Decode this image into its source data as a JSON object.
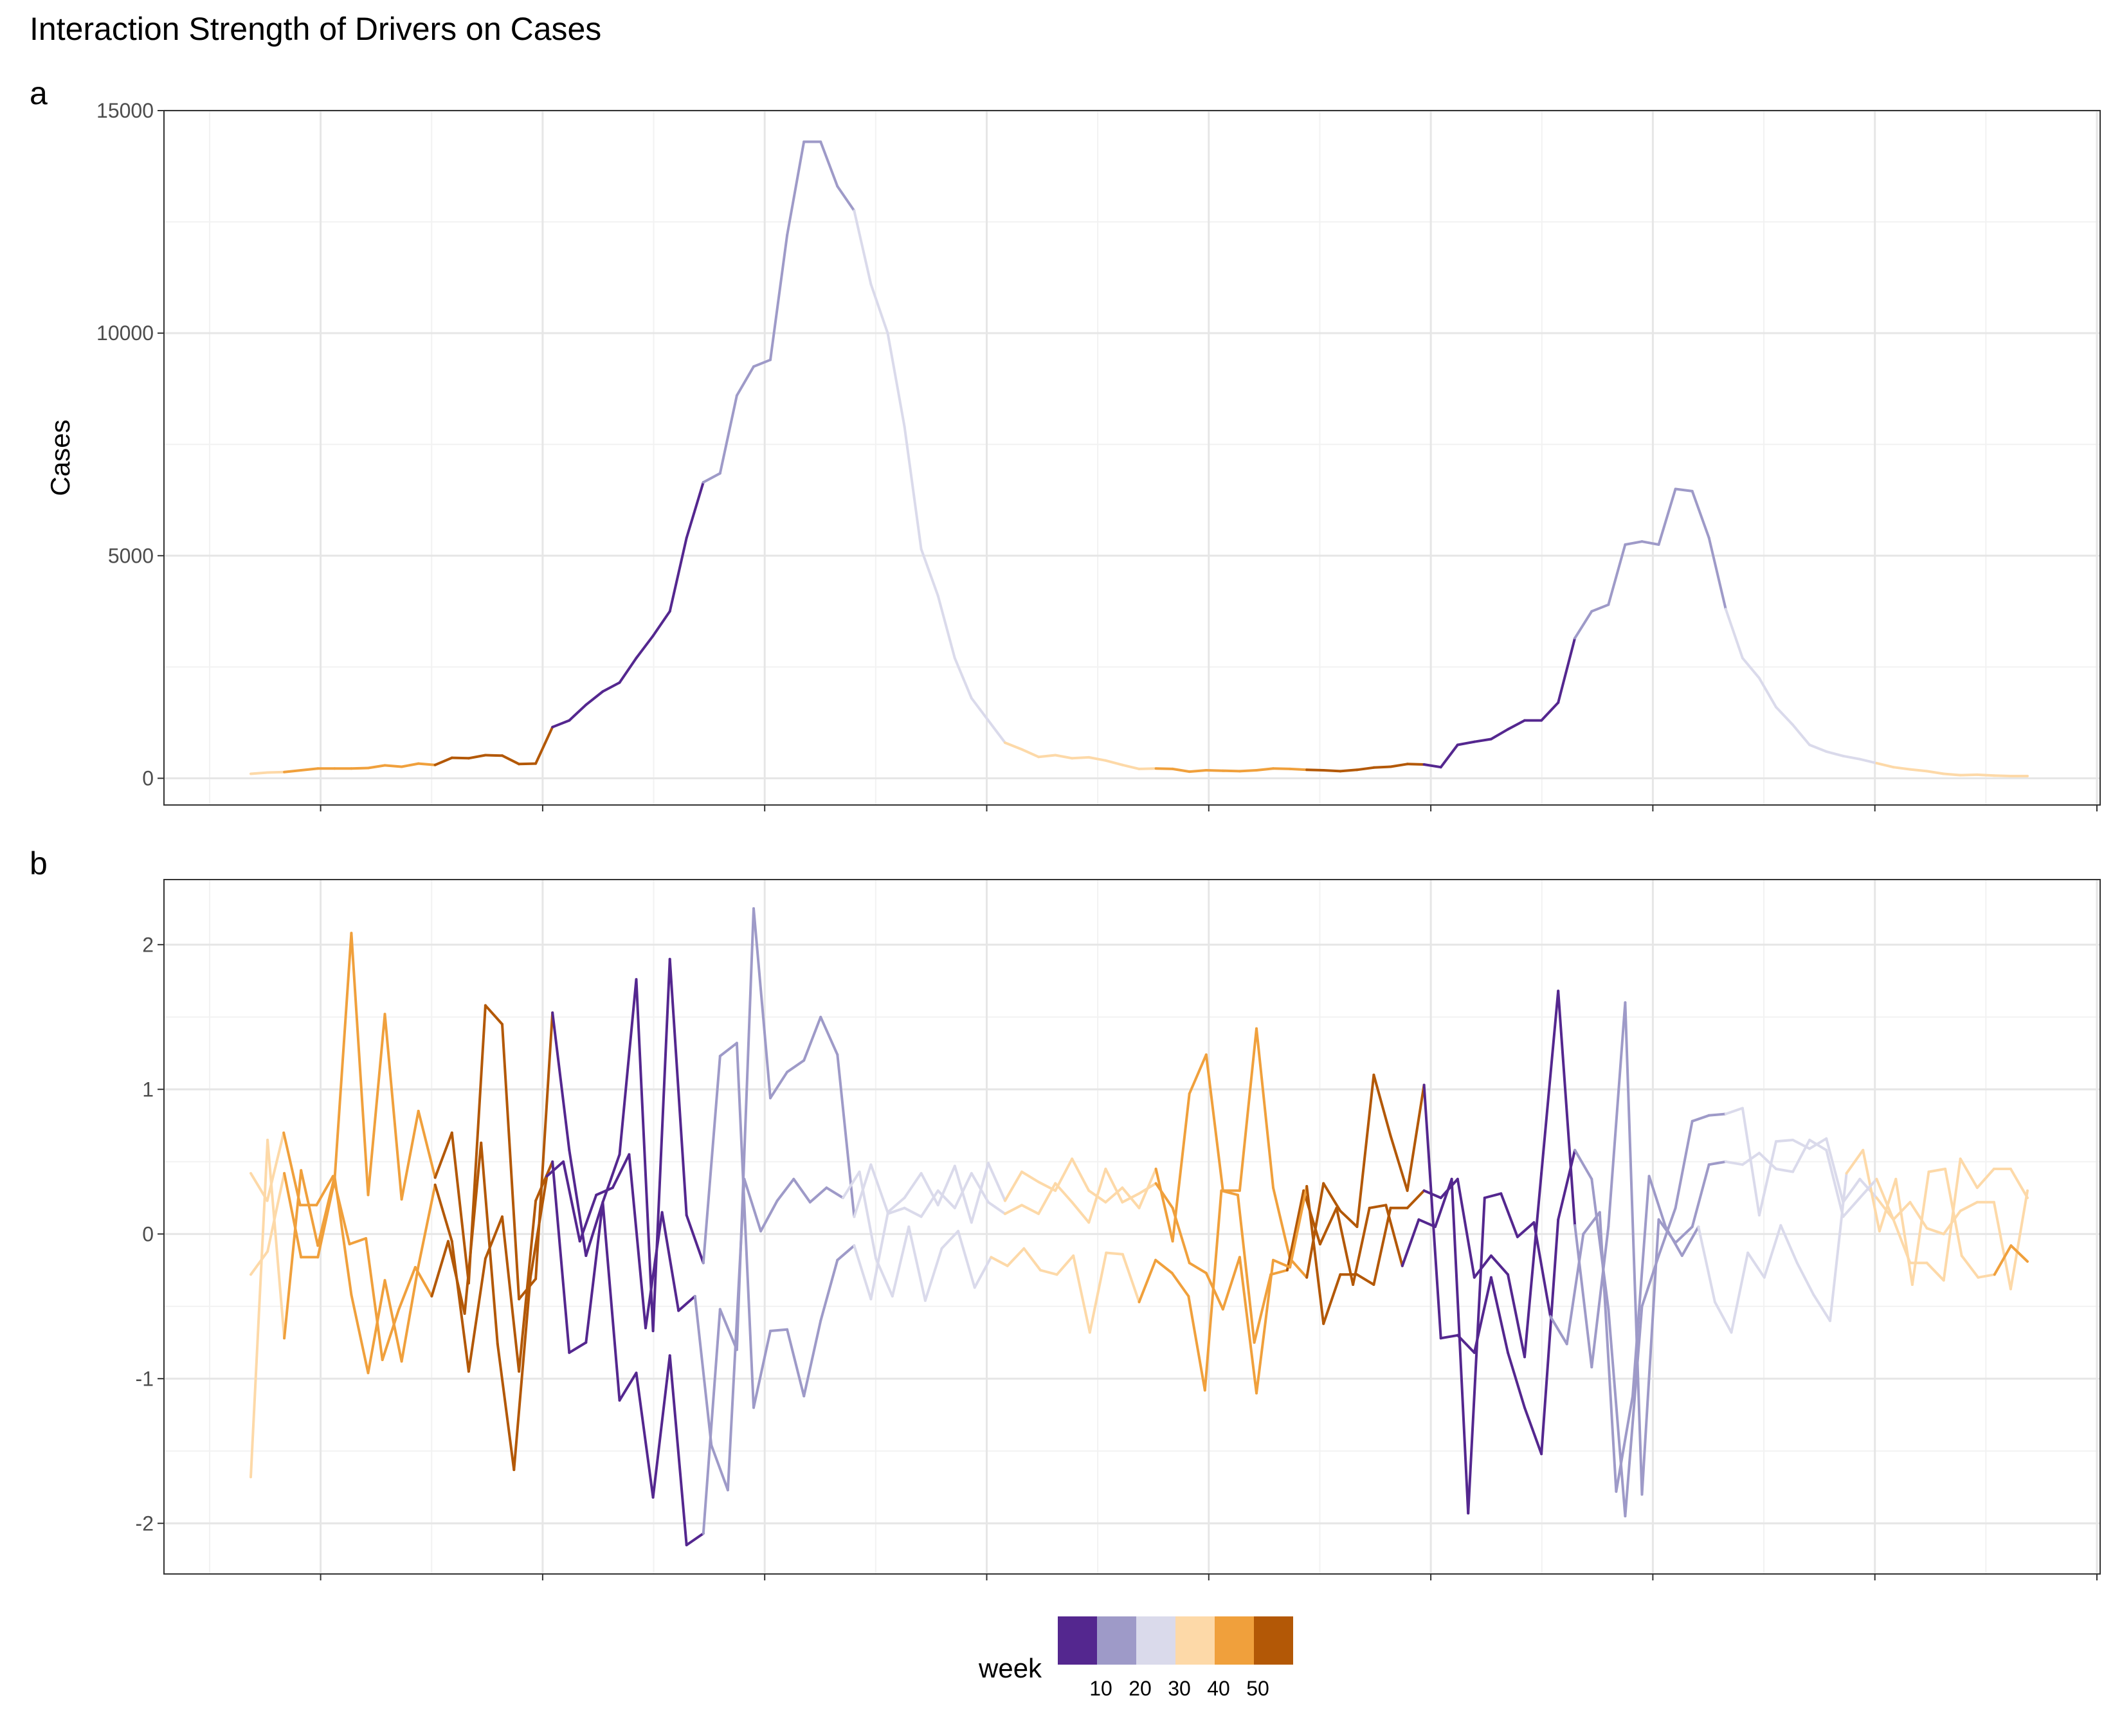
{
  "title": "Interaction Strength of Drivers on Cases",
  "legend": {
    "title": "week",
    "labels": [
      "10",
      "20",
      "30",
      "40",
      "50"
    ],
    "colors": [
      "#54278f",
      "#9e9ac8",
      "#dadaeb",
      "#fdd9a8",
      "#f0a03c",
      "#b35806"
    ]
  },
  "chart_data": [
    {
      "type": "line",
      "panel": "a",
      "ylabel": "Cases",
      "xlabel": "",
      "ylim": [
        -600,
        15000
      ],
      "yticks": [
        0,
        5000,
        10000,
        15000
      ],
      "grid": true,
      "x_step_weeks": 1,
      "series": [
        {
          "color_by": "week",
          "week_start": 35,
          "values": [
            100,
            130,
            140,
            180,
            220,
            220,
            220,
            230,
            290,
            260,
            330,
            300,
            460,
            450,
            520,
            510,
            320,
            330,
            1150,
            1300,
            1650,
            1950,
            2150,
            2700,
            3200,
            3750,
            5400,
            6650,
            6850,
            8600,
            9250,
            9400,
            12200,
            14300,
            14300,
            13300,
            12750,
            11100,
            10000,
            7900,
            5150,
            4100,
            2700,
            1800,
            1300,
            800,
            650,
            480,
            520,
            450,
            470,
            400,
            300,
            210,
            220,
            210,
            150,
            180,
            170,
            160,
            180,
            220,
            210,
            190,
            180,
            160,
            190,
            240,
            260,
            320,
            310,
            250,
            750,
            820,
            880,
            1100,
            1300,
            1300,
            1700,
            3150,
            3750,
            3900,
            5250,
            5320,
            5250,
            6500,
            6450,
            5400,
            3800,
            2700,
            2250,
            1600,
            1200,
            750,
            600,
            500,
            430,
            340,
            250,
            200,
            160,
            100,
            70,
            80,
            60,
            50,
            50
          ]
        }
      ]
    },
    {
      "type": "line",
      "panel": "b",
      "ylabel": "",
      "xlabel": "",
      "ylim": [
        -2.35,
        2.45
      ],
      "yticks": [
        -2,
        -1,
        0,
        1,
        2
      ],
      "grid": true,
      "x_step_weeks": 1,
      "series": [
        {
          "color_by": "week",
          "week_start": 35,
          "values": [
            -1.68,
            0.65,
            -0.72,
            0.44,
            -0.08,
            0.4,
            -0.42,
            -0.96,
            -0.32,
            -0.88,
            -0.22,
            0.34,
            -0.05,
            -0.95,
            -0.17,
            0.12,
            -0.95,
            0.23,
            0.5,
            -0.82,
            -0.75,
            0.22,
            -1.15,
            -0.96,
            -1.82,
            -0.84,
            -2.15,
            -2.07,
            -0.52,
            -0.8,
            2.25,
            0.94,
            1.12,
            1.2,
            1.5,
            1.24,
            0.12,
            0.48,
            0.15,
            0.25,
            0.42,
            0.2,
            0.47,
            0.08,
            0.49,
            0.23,
            0.43,
            0.36,
            0.3,
            0.52,
            0.3,
            0.22,
            0.32,
            0.18,
            0.45,
            -0.05,
            0.97,
            1.24,
            0.3,
            0.3,
            1.42,
            0.32,
            -0.17,
            -0.3,
            0.35,
            0.16,
            0.05,
            1.1,
            0.68,
            0.3,
            1.03,
            -0.72,
            -0.7,
            -0.82,
            -0.3,
            -0.82,
            -1.2,
            -1.52,
            0.1,
            0.58,
            0.38,
            -0.52,
            -1.95,
            -0.5,
            -0.15,
            0.18,
            0.78,
            0.82,
            0.83,
            0.87,
            0.13,
            0.64,
            0.65,
            0.59,
            0.66,
            0.22,
            0.38,
            0.25,
            0.1,
            0.22,
            0.04,
            0.0,
            0.16,
            0.22,
            0.22,
            -0.38,
            0.3
          ]
        },
        {
          "color_by": "week",
          "week_start": 35,
          "values": [
            0.42,
            0.23,
            0.7,
            0.2,
            0.2,
            0.4,
            -0.07,
            -0.03,
            -0.87,
            -0.52,
            -0.23,
            -0.43,
            -0.05,
            -0.55,
            0.63,
            -0.76,
            -1.63,
            -0.3,
            0.4,
            0.5,
            -0.05,
            0.27,
            0.32,
            0.55,
            -0.65,
            0.15,
            -0.53,
            -0.43,
            -1.46,
            -1.77,
            0.38,
            0.02,
            0.23,
            0.38,
            0.22,
            0.32,
            0.25,
            0.43,
            -0.17,
            -0.43,
            0.05,
            -0.46,
            -0.1,
            0.02,
            -0.37,
            -0.16,
            -0.22,
            -0.1,
            -0.25,
            -0.28,
            -0.15,
            -0.68,
            -0.13,
            -0.14,
            -0.47,
            -0.18,
            -0.27,
            -0.43,
            -1.08,
            0.3,
            0.27,
            -0.75,
            -0.28,
            -0.25,
            0.3,
            -0.07,
            0.18,
            -0.35,
            0.18,
            0.2,
            -0.22,
            0.1,
            0.05,
            0.38,
            -1.93,
            0.25,
            0.28,
            -0.02,
            0.08,
            -0.57,
            -0.76,
            0.0,
            0.15,
            -1.78,
            -1.12,
            0.4,
            0.05,
            -0.15,
            0.05,
            -0.47,
            -0.68,
            -0.13,
            -0.3,
            0.06,
            -0.2,
            -0.42,
            -0.6,
            0.42,
            0.58,
            0.02,
            0.38,
            -0.35,
            0.43,
            0.45,
            -0.15,
            -0.3,
            -0.28,
            -0.08,
            -0.19
          ]
        },
        {
          "color_by": "week",
          "week_start": 35,
          "values": [
            -0.28,
            -0.12,
            0.42,
            -0.16,
            -0.16,
            0.37,
            2.08,
            0.27,
            1.52,
            0.24,
            0.85,
            0.39,
            0.7,
            -0.34,
            1.58,
            1.45,
            -0.45,
            -0.31,
            1.53,
            0.58,
            -0.15,
            0.22,
            0.55,
            1.76,
            -0.67,
            1.9,
            0.13,
            -0.2,
            1.23,
            1.32,
            -1.2,
            -0.67,
            -0.66,
            -1.12,
            -0.6,
            -0.18,
            -0.08,
            -0.45,
            0.14,
            0.18,
            0.12,
            0.3,
            0.18,
            0.42,
            0.22,
            0.14,
            0.2,
            0.14,
            0.35,
            0.22,
            0.08,
            0.45,
            0.22,
            0.28,
            0.35,
            0.18,
            -0.2,
            -0.27,
            -0.52,
            -0.16,
            -1.1,
            -0.18,
            -0.23,
            0.33,
            -0.62,
            -0.28,
            -0.28,
            -0.35,
            0.18,
            0.18,
            0.3,
            0.25,
            0.38,
            -0.3,
            -0.15,
            -0.28,
            -0.85,
            0.42,
            1.68,
            0.06,
            -0.92,
            0.05,
            1.6,
            -1.8,
            0.1,
            -0.06,
            0.05,
            0.48,
            0.5,
            0.48,
            0.56,
            0.45,
            0.43,
            0.65,
            0.58,
            0.12,
            0.25,
            0.38,
            0.1,
            -0.2,
            -0.2,
            -0.32,
            0.52,
            0.32,
            0.45,
            0.45,
            0.25
          ]
        }
      ]
    }
  ]
}
